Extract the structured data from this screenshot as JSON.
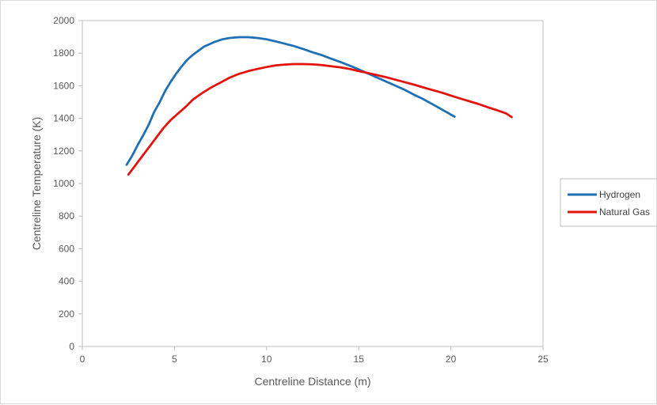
{
  "chart_data": {
    "type": "line",
    "title": "",
    "xlabel": "Centreline Distance (m)",
    "ylabel": "Centreline Temperature (K)",
    "xlim": [
      0,
      25
    ],
    "ylim": [
      0,
      2000
    ],
    "xticks": [
      0,
      5,
      10,
      15,
      20,
      25
    ],
    "yticks": [
      0,
      200,
      400,
      600,
      800,
      1000,
      1200,
      1400,
      1600,
      1800,
      2000
    ],
    "grid": false,
    "legend_position": "right",
    "series": [
      {
        "name": "Hydrogen",
        "color": "#1f6fb5",
        "x": [
          2.4,
          2.7,
          3.0,
          3.3,
          3.6,
          3.9,
          4.2,
          4.5,
          4.8,
          5.1,
          5.4,
          5.7,
          6.0,
          6.3,
          6.6,
          6.9,
          7.2,
          7.6,
          8.0,
          8.5,
          9.0,
          9.5,
          10.0,
          10.5,
          11.0,
          11.5,
          12.0,
          12.5,
          13.0,
          13.5,
          14.0,
          14.5,
          15.0,
          15.5,
          16.0,
          16.5,
          17.0,
          17.5,
          18.0,
          18.5,
          19.0,
          19.5,
          20.2
        ],
        "y": [
          1115,
          1170,
          1235,
          1295,
          1360,
          1440,
          1500,
          1570,
          1625,
          1675,
          1720,
          1760,
          1790,
          1815,
          1840,
          1855,
          1870,
          1885,
          1893,
          1898,
          1898,
          1893,
          1885,
          1872,
          1858,
          1843,
          1825,
          1805,
          1788,
          1766,
          1746,
          1724,
          1700,
          1675,
          1650,
          1625,
          1600,
          1575,
          1545,
          1518,
          1487,
          1455,
          1410
        ]
      },
      {
        "name": "Natural Gas",
        "color": "#e3120b",
        "x": [
          2.5,
          2.8,
          3.2,
          3.6,
          4.0,
          4.4,
          4.8,
          5.2,
          5.6,
          6.0,
          6.5,
          7.0,
          7.5,
          8.0,
          8.5,
          9.0,
          9.5,
          10.0,
          10.5,
          11.0,
          11.5,
          12.0,
          12.5,
          13.0,
          13.5,
          14.0,
          14.5,
          15.0,
          15.5,
          16.0,
          16.5,
          17.0,
          17.5,
          18.0,
          18.5,
          19.0,
          19.5,
          20.0,
          20.5,
          21.0,
          21.5,
          22.0,
          22.5,
          23.0,
          23.3
        ],
        "y": [
          1055,
          1100,
          1160,
          1220,
          1280,
          1340,
          1390,
          1430,
          1470,
          1515,
          1555,
          1590,
          1620,
          1650,
          1673,
          1690,
          1703,
          1715,
          1725,
          1730,
          1733,
          1733,
          1731,
          1727,
          1720,
          1713,
          1703,
          1690,
          1678,
          1665,
          1652,
          1637,
          1622,
          1607,
          1590,
          1574,
          1558,
          1540,
          1522,
          1505,
          1488,
          1468,
          1450,
          1430,
          1408
        ]
      }
    ]
  }
}
